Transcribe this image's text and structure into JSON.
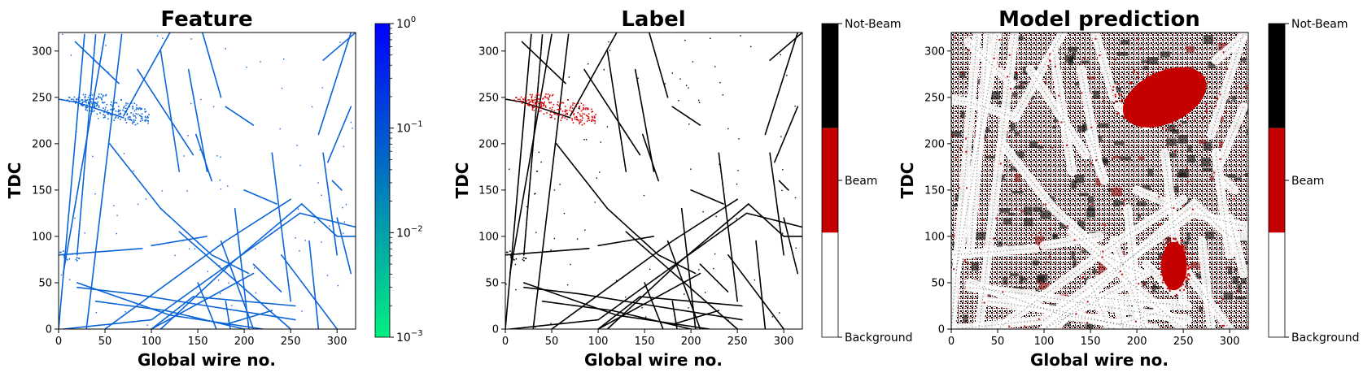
{
  "chart_data": [
    {
      "type": "heatmap",
      "title": "Feature",
      "xlabel": "Global wire no.",
      "ylabel": "TDC",
      "xlim": [
        0,
        320
      ],
      "ylim": [
        0,
        320
      ],
      "xticks": [
        "0",
        "50",
        "100",
        "150",
        "200",
        "250",
        "300"
      ],
      "yticks": [
        "0",
        "50",
        "100",
        "150",
        "200",
        "250",
        "300"
      ],
      "colorbar": {
        "scale": "log",
        "range": [
          0.001,
          1
        ],
        "ticks": [
          {
            "base": "10",
            "exp": "0",
            "value": 1
          },
          {
            "base": "10",
            "exp": "−1",
            "value": 0.1
          },
          {
            "base": "10",
            "exp": "−2",
            "value": 0.01
          },
          {
            "base": "10",
            "exp": "−3",
            "value": 0.001
          }
        ],
        "colors": [
          "#00f080",
          "#0000ff"
        ]
      },
      "hit_color": "#0a64d8",
      "tracks": [
        [
          [
            0,
            248
          ],
          [
            18,
            245
          ],
          [
            40,
            238
          ],
          [
            70,
            228
          ]
        ],
        [
          [
            5,
            60
          ],
          [
            50,
            318
          ]
        ],
        [
          [
            0,
            0
          ],
          [
            28,
            318
          ]
        ],
        [
          [
            20,
            80
          ],
          [
            40,
            318
          ]
        ],
        [
          [
            30,
            0
          ],
          [
            68,
            318
          ]
        ],
        [
          [
            18,
            310
          ],
          [
            65,
            265
          ]
        ],
        [
          [
            55,
            200
          ],
          [
            110,
            130
          ],
          [
            165,
            80
          ],
          [
            205,
            60
          ]
        ],
        [
          [
            70,
            230
          ],
          [
            120,
            320
          ]
        ],
        [
          [
            85,
            280
          ],
          [
            145,
            188
          ]
        ],
        [
          [
            110,
            300
          ],
          [
            130,
            170
          ]
        ],
        [
          [
            140,
            280
          ],
          [
            160,
            170
          ]
        ],
        [
          [
            148,
            210
          ],
          [
            165,
            160
          ]
        ],
        [
          [
            180,
            240
          ],
          [
            210,
            220
          ]
        ],
        [
          [
            155,
            320
          ],
          [
            175,
            250
          ]
        ],
        [
          [
            200,
            150
          ],
          [
            235,
            135
          ]
        ],
        [
          [
            230,
            190
          ],
          [
            250,
            30
          ]
        ],
        [
          [
            285,
            190
          ],
          [
            300,
            80
          ]
        ],
        [
          [
            285,
            290
          ],
          [
            320,
            320
          ]
        ],
        [
          [
            290,
            180
          ],
          [
            315,
            240
          ]
        ],
        [
          [
            280,
            210
          ],
          [
            315,
            320
          ]
        ],
        [
          [
            110,
            0
          ],
          [
            185,
            70
          ],
          [
            262,
            135
          ],
          [
            300,
            100
          ],
          [
            320,
            100
          ]
        ],
        [
          [
            5,
            0
          ],
          [
            100,
            10
          ],
          [
            260,
            125
          ],
          [
            320,
            110
          ]
        ],
        [
          [
            0,
            80
          ],
          [
            90,
            87
          ]
        ],
        [
          [
            50,
            0
          ],
          [
            180,
            95
          ],
          [
            250,
            140
          ]
        ],
        [
          [
            100,
            90
          ],
          [
            160,
            100
          ]
        ],
        [
          [
            100,
            0
          ],
          [
            210,
            60
          ]
        ],
        [
          [
            20,
            50
          ],
          [
            120,
            15
          ],
          [
            220,
            0
          ]
        ],
        [
          [
            40,
            30
          ],
          [
            115,
            20
          ],
          [
            200,
            0
          ]
        ],
        [
          [
            20,
            45
          ],
          [
            80,
            38
          ],
          [
            160,
            25
          ],
          [
            255,
            10
          ]
        ],
        [
          [
            100,
            0
          ],
          [
            145,
            35
          ],
          [
            255,
            25
          ]
        ],
        [
          [
            180,
            5
          ],
          [
            230,
            20
          ]
        ],
        [
          [
            175,
            95
          ],
          [
            210,
            0
          ]
        ],
        [
          [
            130,
            105
          ],
          [
            250,
            0
          ]
        ],
        [
          [
            180,
            30
          ],
          [
            185,
            0
          ]
        ],
        [
          [
            240,
            80
          ],
          [
            300,
            0
          ]
        ],
        [
          [
            270,
            95
          ],
          [
            280,
            0
          ]
        ],
        [
          [
            300,
            120
          ],
          [
            315,
            60
          ]
        ],
        [
          [
            190,
            130
          ],
          [
            205,
            0
          ]
        ],
        [
          [
            150,
            50
          ],
          [
            170,
            0
          ]
        ],
        [
          [
            210,
            70
          ],
          [
            240,
            40
          ]
        ],
        [
          [
            295,
            160
          ],
          [
            305,
            150
          ]
        ]
      ],
      "blobs": [
        {
          "x": 60,
          "y": 238,
          "rx": 40,
          "ry": 14
        },
        {
          "x": 25,
          "y": 245,
          "rx": 18,
          "ry": 6
        },
        {
          "x": 10,
          "y": 80,
          "rx": 12,
          "ry": 5
        }
      ]
    },
    {
      "type": "heatmap",
      "title": "Label",
      "xlabel": "Global wire no.",
      "ylabel": "TDC",
      "xlim": [
        0,
        320
      ],
      "ylim": [
        0,
        320
      ],
      "xticks": [
        "0",
        "50",
        "100",
        "150",
        "200",
        "250",
        "300"
      ],
      "yticks": [
        "0",
        "50",
        "100",
        "150",
        "200",
        "250",
        "300"
      ],
      "colorbar": {
        "scale": "categorical",
        "categories": [
          {
            "label": "Not-Beam",
            "color": "#000000"
          },
          {
            "label": "Beam",
            "color": "#c40000"
          },
          {
            "label": "Background",
            "color": "#ffffff"
          }
        ]
      },
      "hit_color": "#000000",
      "beam_color": "#d40000"
    },
    {
      "type": "heatmap",
      "title": "Model prediction",
      "xlabel": "Global wire no.",
      "ylabel": "TDC",
      "xlim": [
        0,
        320
      ],
      "ylim": [
        0,
        320
      ],
      "xticks": [
        "0",
        "50",
        "100",
        "150",
        "200",
        "250",
        "300"
      ],
      "yticks": [
        "0",
        "50",
        "100",
        "150",
        "200",
        "250",
        "300"
      ],
      "colorbar": {
        "scale": "categorical",
        "categories": [
          {
            "label": "Not-Beam",
            "color": "#000000"
          },
          {
            "label": "Beam",
            "color": "#c40000"
          },
          {
            "label": "Background",
            "color": "#ffffff"
          }
        ]
      },
      "beam_regions": [
        {
          "x": 230,
          "y": 250,
          "rx": 48,
          "ry": 28
        },
        {
          "x": 240,
          "y": 68,
          "rx": 14,
          "ry": 26
        }
      ]
    }
  ]
}
